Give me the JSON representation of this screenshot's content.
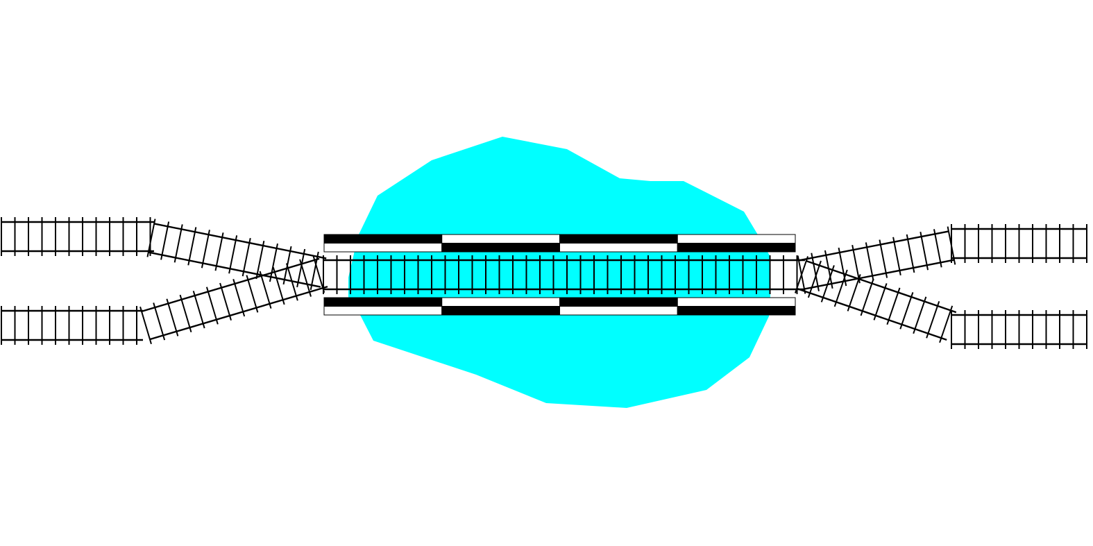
{
  "colors": {
    "water": "#00ffff",
    "rail": "#000000",
    "background": "#ffffff",
    "platform_dark": "#000000",
    "platform_light": "#ffffff"
  },
  "elements": {
    "water_body": "water-body",
    "main_track": "main-track",
    "platform_top": "platform-top",
    "platform_bottom": "platform-bottom",
    "left_switch": "left-switch",
    "right_switch": "right-switch"
  }
}
